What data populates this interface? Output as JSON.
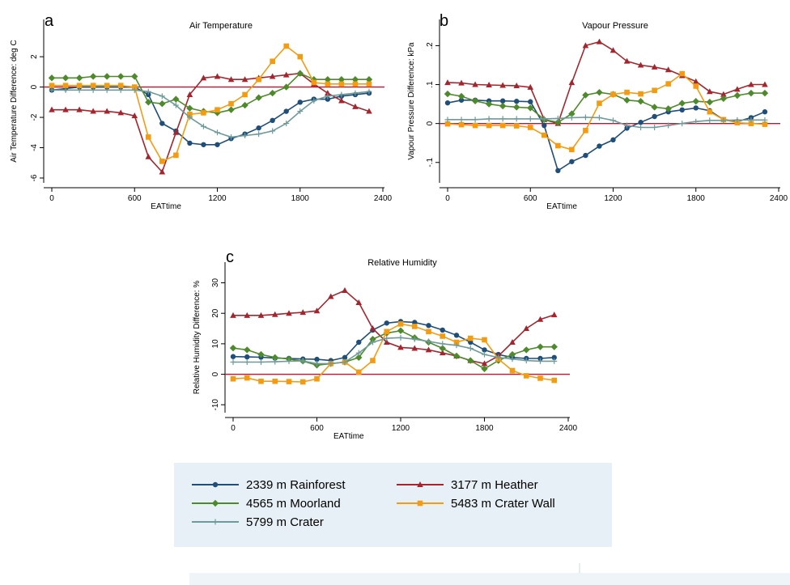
{
  "chart_data": [
    {
      "type": "line",
      "panel_letter": "a",
      "title": "Air Temperature",
      "xlabel": "EATtime",
      "ylabel": "Air Temperature Difference: deg C",
      "xlim": [
        0,
        2400
      ],
      "ylim": [
        -6,
        3.5
      ],
      "x_ticks": [
        "0",
        "600",
        "1200",
        "1800",
        "2400"
      ],
      "y_ticks": [
        "-6",
        "-4",
        "-2",
        "0",
        "2"
      ],
      "zero_line": 0,
      "x": [
        0,
        100,
        200,
        300,
        400,
        500,
        600,
        700,
        800,
        900,
        1000,
        1100,
        1200,
        1300,
        1400,
        1500,
        1600,
        1700,
        1800,
        1900,
        2000,
        2100,
        2200,
        2300
      ],
      "series": [
        {
          "name": "2339 m Rainforest",
          "values": [
            -0.2,
            -0.1,
            0,
            0,
            0,
            0,
            0,
            -0.5,
            -2.4,
            -2.9,
            -3.7,
            -3.8,
            -3.8,
            -3.4,
            -3.1,
            -2.7,
            -2.2,
            -1.6,
            -1.0,
            -0.8,
            -0.8,
            -0.6,
            -0.5,
            -0.4
          ]
        },
        {
          "name": "3177 m Heather",
          "values": [
            -1.5,
            -1.5,
            -1.5,
            -1.6,
            -1.6,
            -1.7,
            -1.9,
            -4.6,
            -5.6,
            -3.0,
            -0.5,
            0.6,
            0.7,
            0.5,
            0.5,
            0.6,
            0.7,
            0.8,
            0.9,
            0.2,
            -0.4,
            -0.9,
            -1.3,
            -1.6
          ]
        },
        {
          "name": "4565 m Moorland",
          "values": [
            0.6,
            0.6,
            0.6,
            0.7,
            0.7,
            0.7,
            0.7,
            -1.0,
            -1.1,
            -0.8,
            -1.4,
            -1.6,
            -1.7,
            -1.5,
            -1.2,
            -0.7,
            -0.4,
            0,
            0.9,
            0.5,
            0.5,
            0.5,
            0.5,
            0.5
          ]
        },
        {
          "name": "5483 m Crater Wall",
          "values": [
            0.1,
            0.1,
            0.1,
            0.1,
            0.1,
            0.1,
            0,
            -3.3,
            -4.9,
            -4.5,
            -1.8,
            -1.7,
            -1.5,
            -1.1,
            -0.5,
            0.5,
            1.7,
            2.7,
            2.0,
            0.3,
            0.2,
            0.2,
            0.2,
            0.2
          ]
        },
        {
          "name": "5799 m Crater",
          "values": [
            -0.2,
            -0.2,
            -0.2,
            -0.2,
            -0.2,
            -0.2,
            -0.2,
            -0.3,
            -0.6,
            -1.2,
            -2.0,
            -2.6,
            -3.0,
            -3.3,
            -3.2,
            -3.1,
            -2.9,
            -2.4,
            -1.6,
            -0.9,
            -0.6,
            -0.5,
            -0.4,
            -0.3
          ]
        }
      ]
    },
    {
      "type": "line",
      "panel_letter": "b",
      "title": "Vapour Pressure",
      "xlabel": "EATtime",
      "ylabel": "Vapour Pressure Difference: kPa",
      "xlim": [
        0,
        2400
      ],
      "ylim": [
        -0.14,
        0.23
      ],
      "x_ticks": [
        "0",
        "600",
        "1200",
        "1800",
        "2400"
      ],
      "y_ticks": [
        "-.1",
        "0",
        ".1",
        ".2"
      ],
      "zero_line": 0,
      "x": [
        0,
        100,
        200,
        300,
        400,
        500,
        600,
        700,
        800,
        900,
        1000,
        1100,
        1200,
        1300,
        1400,
        1500,
        1600,
        1700,
        1800,
        1900,
        2000,
        2100,
        2200,
        2300
      ],
      "series": [
        {
          "name": "2339 m Rainforest",
          "values": [
            0.053,
            0.06,
            0.06,
            0.058,
            0.058,
            0.057,
            0.056,
            -0.005,
            -0.121,
            -0.098,
            -0.082,
            -0.058,
            -0.042,
            -0.012,
            0.003,
            0.018,
            0.03,
            0.035,
            0.04,
            0.033,
            0.01,
            0.005,
            0.015,
            0.03
          ]
        },
        {
          "name": "3177 m Heather",
          "values": [
            0.105,
            0.104,
            0.1,
            0.099,
            0.098,
            0.097,
            0.093,
            0.01,
            0,
            0.105,
            0.2,
            0.21,
            0.188,
            0.16,
            0.15,
            0.145,
            0.138,
            0.123,
            0.108,
            0.082,
            0.075,
            0.088,
            0.1,
            0.1
          ]
        },
        {
          "name": "4565 m Moorland",
          "values": [
            0.076,
            0.07,
            0.058,
            0.05,
            0.045,
            0.042,
            0.04,
            0.01,
            0.003,
            0.025,
            0.073,
            0.08,
            0.075,
            0.06,
            0.057,
            0.042,
            0.038,
            0.052,
            0.057,
            0.055,
            0.064,
            0.072,
            0.078,
            0.078
          ]
        },
        {
          "name": "5483 m Crater Wall",
          "values": [
            -0.001,
            -0.003,
            -0.005,
            -0.005,
            -0.005,
            -0.006,
            -0.01,
            -0.03,
            -0.057,
            -0.067,
            -0.018,
            0.052,
            0.075,
            0.08,
            0.076,
            0.085,
            0.102,
            0.128,
            0.096,
            0.03,
            0.01,
            0.002,
            0,
            -0.002
          ]
        },
        {
          "name": "5799 m Crater",
          "values": [
            0.01,
            0.01,
            0.01,
            0.012,
            0.012,
            0.012,
            0.012,
            0.012,
            0.013,
            0.015,
            0.016,
            0.015,
            0.008,
            -0.005,
            -0.01,
            -0.01,
            -0.005,
            0,
            0.005,
            0.008,
            0.008,
            0.009,
            0.009,
            0.009
          ]
        }
      ]
    },
    {
      "type": "line",
      "panel_letter": "c",
      "title": "Relative Humidity",
      "xlabel": "EATtime",
      "ylabel": "Relative Humidity Difference: %",
      "xlim": [
        0,
        2400
      ],
      "ylim": [
        -11,
        32
      ],
      "x_ticks": [
        "0",
        "600",
        "1200",
        "1800",
        "2400"
      ],
      "y_ticks": [
        "-10",
        "0",
        "10",
        "20",
        "30"
      ],
      "zero_line": 0,
      "x": [
        0,
        100,
        200,
        300,
        400,
        500,
        600,
        700,
        800,
        900,
        1000,
        1100,
        1200,
        1300,
        1400,
        1500,
        1600,
        1700,
        1800,
        1900,
        2000,
        2100,
        2200,
        2300
      ],
      "series": [
        {
          "name": "2339 m Rainforest",
          "values": [
            5.8,
            5.7,
            5.6,
            5.3,
            5.2,
            5.0,
            4.9,
            4.5,
            5.5,
            10.5,
            14.5,
            16.8,
            17.3,
            17.0,
            16.0,
            14.5,
            12.8,
            10.5,
            8.0,
            6.5,
            5.5,
            5.2,
            5.2,
            5.5
          ]
        },
        {
          "name": "3177 m Heather",
          "values": [
            19.3,
            19.3,
            19.3,
            19.6,
            20.0,
            20.3,
            20.8,
            25.5,
            27.5,
            23.5,
            15.0,
            10.5,
            8.8,
            8.5,
            8.0,
            7.0,
            6.0,
            4.5,
            3.5,
            6.0,
            10.5,
            15.0,
            18.0,
            19.5
          ]
        },
        {
          "name": "4565 m Moorland",
          "values": [
            8.6,
            8.0,
            6.5,
            5.5,
            5.0,
            4.3,
            3.0,
            3.5,
            4.0,
            5.5,
            11.5,
            13.5,
            14.3,
            12.0,
            10.5,
            8.5,
            6.0,
            4.5,
            1.8,
            4.5,
            6.5,
            8.0,
            9.0,
            9.0
          ]
        },
        {
          "name": "5483 m Crater Wall",
          "values": [
            -1.5,
            -1.2,
            -2.3,
            -2.3,
            -2.4,
            -2.5,
            -1.5,
            3.5,
            4.0,
            0.7,
            4.5,
            14.0,
            16.5,
            15.7,
            14.0,
            12.5,
            10.5,
            11.8,
            11.3,
            5.0,
            1.2,
            -0.5,
            -1.3,
            -2.0
          ]
        },
        {
          "name": "5799 m Crater",
          "values": [
            4.0,
            4.0,
            4.0,
            4.1,
            4.3,
            4.4,
            3.5,
            3.5,
            4.0,
            7.0,
            10.5,
            11.8,
            12.0,
            11.5,
            10.8,
            10.0,
            9.5,
            8.5,
            6.5,
            5.5,
            5.0,
            4.5,
            4.3,
            4.3
          ]
        }
      ]
    }
  ],
  "legend": {
    "items": [
      {
        "label": "2339 m Rainforest",
        "color": "#1f4e79",
        "marker": "circle"
      },
      {
        "label": "3177 m Heather",
        "color": "#a3262f",
        "marker": "triangle"
      },
      {
        "label": "4565 m Moorland",
        "color": "#4e8a2c",
        "marker": "diamond"
      },
      {
        "label": "5483 m Crater Wall",
        "color": "#f39c12",
        "marker": "square"
      },
      {
        "label": "5799 m Crater",
        "color": "#6f9a9a",
        "marker": "plus"
      }
    ]
  },
  "colors": {
    "zero_line": "#c0152f",
    "legend_background": "#e7f0f6"
  }
}
